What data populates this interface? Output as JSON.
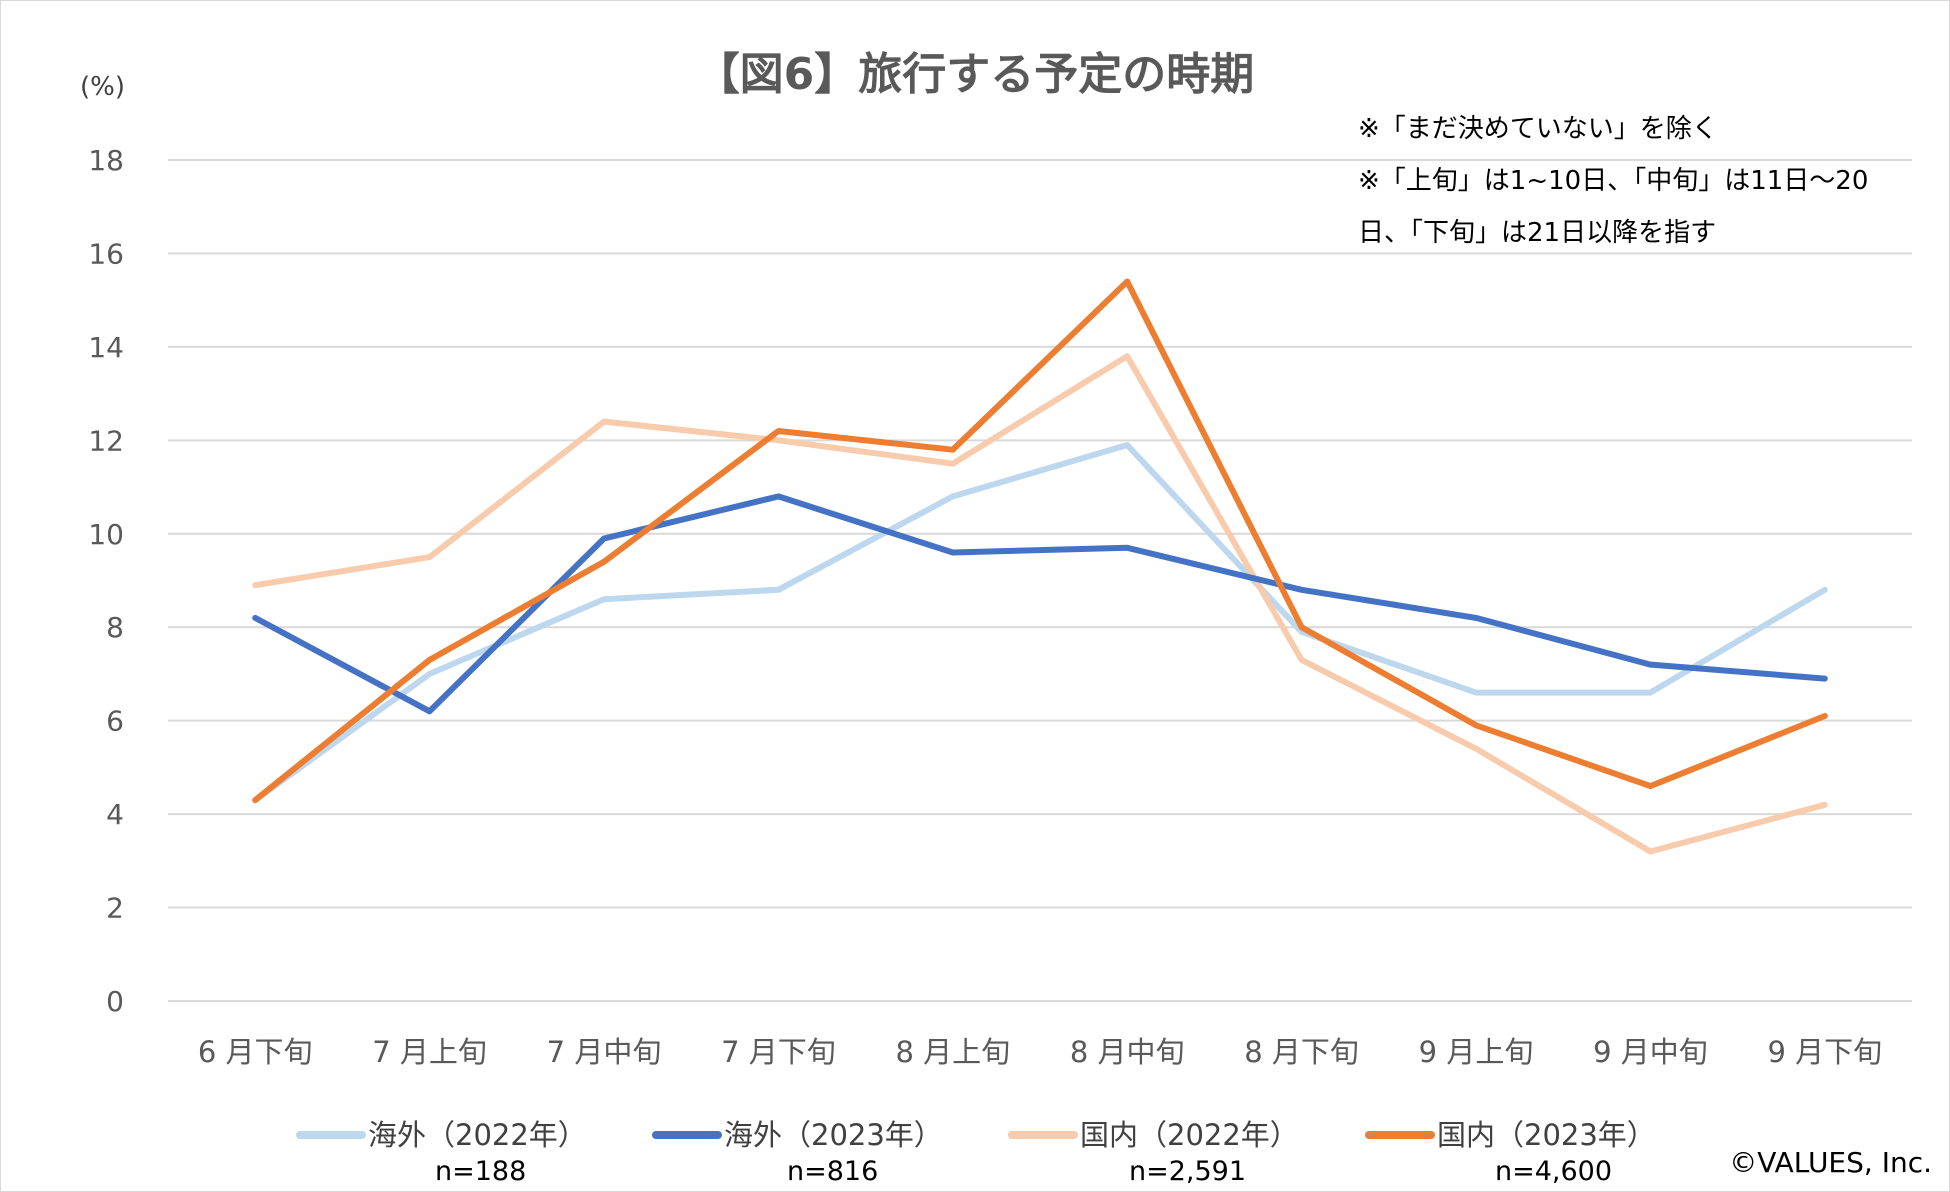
{
  "title": "【図6】旅行する予定の時期",
  "unit_label": "(%)",
  "notes": [
    "※「まだ決めていない」を除く",
    "※「上旬」は1~10日、「中旬」は11日～20",
    "日、「下旬」は21日以降を指す"
  ],
  "copyright": "©VALUES, Inc.",
  "legend": [
    {
      "label": "海外（2022年）",
      "n": "n=188",
      "color": "#bdd7ee"
    },
    {
      "label": "海外（2023年）",
      "n": "n=816",
      "color": "#4472c4"
    },
    {
      "label": "国内（2022年）",
      "n": "n=2,591",
      "color": "#f8cbad"
    },
    {
      "label": "国内（2023年）",
      "n": "n=4,600",
      "color": "#ed7d31"
    }
  ],
  "chart_data": {
    "type": "line",
    "title": "【図6】旅行する予定の時期",
    "ylabel": "(%)",
    "ylim": [
      0,
      18
    ],
    "yticks": [
      0,
      2,
      4,
      6,
      8,
      10,
      12,
      14,
      16,
      18
    ],
    "grid": true,
    "legend_position": "bottom",
    "categories": [
      "6 月下旬",
      "7 月上旬",
      "7 月中旬",
      "7 月下旬",
      "8 月上旬",
      "8 月中旬",
      "8 月下旬",
      "9 月上旬",
      "9 月中旬",
      "9 月下旬"
    ],
    "series": [
      {
        "name": "海外（2022年）",
        "color": "#bdd7ee",
        "values": [
          4.3,
          7.0,
          8.6,
          8.8,
          10.8,
          11.9,
          7.9,
          6.6,
          6.6,
          8.8
        ]
      },
      {
        "name": "国内（2022年）",
        "color": "#f8cbad",
        "values": [
          8.9,
          9.5,
          12.4,
          12.0,
          11.5,
          13.8,
          7.3,
          5.4,
          3.2,
          4.2
        ]
      },
      {
        "name": "海外（2023年）",
        "color": "#4472c4",
        "values": [
          8.2,
          6.2,
          9.9,
          10.8,
          9.6,
          9.7,
          8.8,
          8.2,
          7.2,
          6.9
        ]
      },
      {
        "name": "国内（2023年）",
        "color": "#ed7d31",
        "values": [
          4.3,
          7.3,
          9.4,
          12.2,
          11.8,
          15.4,
          8.0,
          5.9,
          4.6,
          6.1
        ]
      }
    ]
  }
}
